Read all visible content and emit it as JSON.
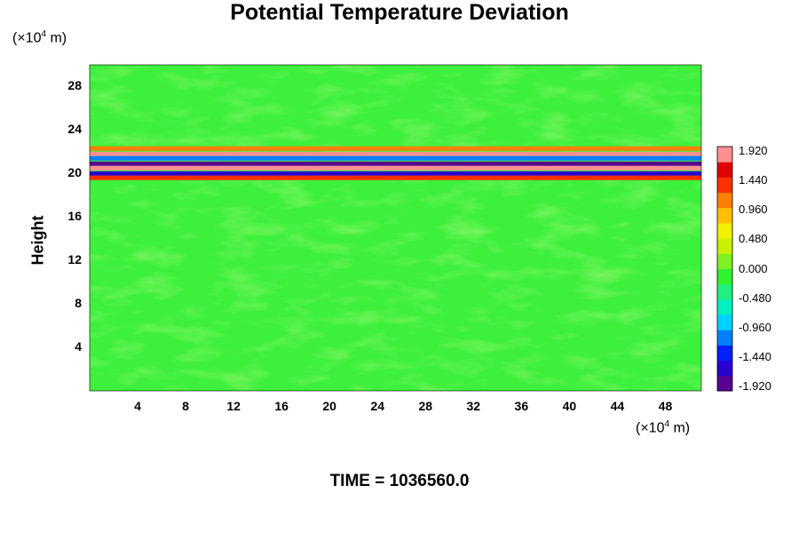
{
  "chart_data": {
    "type": "heatmap",
    "title": "Potential Temperature Deviation",
    "ylabel": "Height",
    "xunit": {
      "prefix": "(×10",
      "exp": "4",
      "suffix": " m)"
    },
    "yunit": {
      "prefix": "(×10",
      "exp": "4",
      "suffix": " m)"
    },
    "xlim": [
      0,
      51
    ],
    "ylim": [
      0,
      30
    ],
    "xticks": [
      "4",
      "8",
      "12",
      "16",
      "20",
      "24",
      "28",
      "32",
      "36",
      "40",
      "44",
      "48"
    ],
    "yticks": [
      "4",
      "8",
      "12",
      "16",
      "20",
      "24",
      "28"
    ],
    "colorbar": {
      "range": [
        -1.92,
        1.92
      ],
      "labels": [
        "1.920",
        "1.440",
        "0.960",
        "0.480",
        "0.000",
        "-0.480",
        "-0.960",
        "-1.440",
        "-1.920"
      ],
      "colors": [
        "#5a0090",
        "#2a00d0",
        "#0020ff",
        "#0080ff",
        "#00d0ff",
        "#00f0c0",
        "#20f080",
        "#30f030",
        "#80f020",
        "#c8f000",
        "#f0f000",
        "#ffc000",
        "#ff8000",
        "#ff3000",
        "#e00000",
        "#ff9090"
      ]
    },
    "bands": [
      {
        "y": 22.3,
        "value": 1.0
      },
      {
        "y": 21.8,
        "value": 1.9
      },
      {
        "y": 21.4,
        "value": -1.2
      },
      {
        "y": 20.9,
        "value": -1.9
      },
      {
        "y": 20.5,
        "value": 1.9
      },
      {
        "y": 20.0,
        "value": -1.5
      },
      {
        "y": 19.6,
        "value": 1.2
      }
    ],
    "annotations": []
  },
  "footer": {
    "time_label": "TIME = 1036560.0"
  }
}
